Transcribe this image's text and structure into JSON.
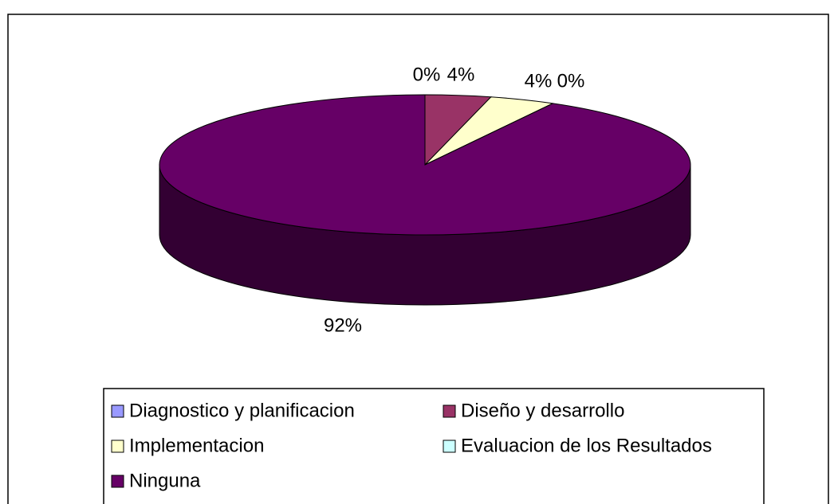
{
  "chart_data": {
    "type": "pie",
    "categories": [
      "Diagnostico y planificacion",
      "Diseño y desarrollo",
      "Implementacion",
      "Evaluacion de los Resultados",
      "Ninguna"
    ],
    "values": [
      0,
      4,
      4,
      0,
      92
    ],
    "value_labels": [
      "0%",
      "4%",
      "4%",
      "0%",
      "92%"
    ],
    "colors": [
      "#9999ff",
      "#993366",
      "#ffffcc",
      "#ccffff",
      "#660066"
    ],
    "legend": "bottom"
  }
}
